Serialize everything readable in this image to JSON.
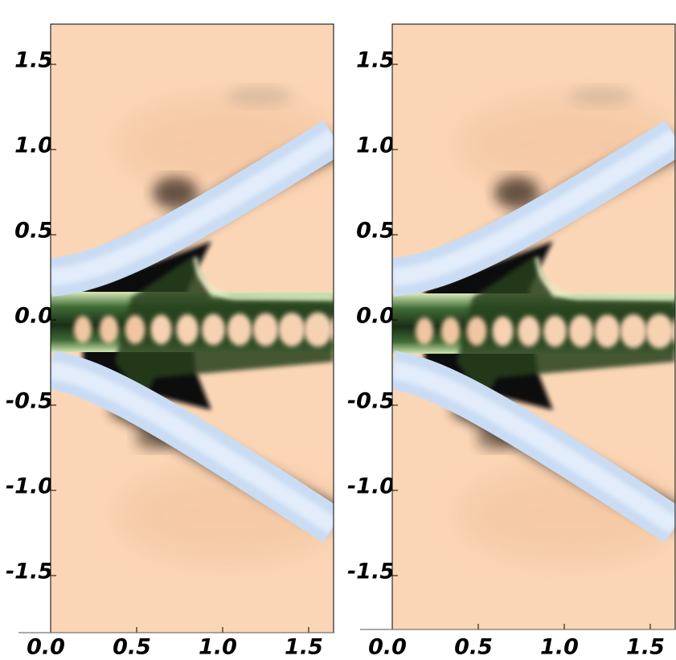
{
  "chart_data": [
    {
      "type": "image",
      "xlim": [
        0,
        1.645
      ],
      "ylim": [
        -1.835,
        1.736
      ],
      "xticks": [
        {
          "value": 0,
          "label": "0.0"
        },
        {
          "value": 0.5,
          "label": "0.5"
        },
        {
          "value": 1,
          "label": "1.0"
        },
        {
          "value": 1.5,
          "label": "1.5"
        }
      ],
      "yticks": [
        {
          "value": 1.5,
          "label": "1.5"
        },
        {
          "value": 1,
          "label": "1.0"
        },
        {
          "value": 0.5,
          "label": "0.5"
        },
        {
          "value": 0,
          "label": "0.0"
        },
        {
          "value": -0.5,
          "label": "-0.5"
        },
        {
          "value": -1,
          "label": "-1.0"
        },
        {
          "value": -1.5,
          "label": "-1.5"
        }
      ]
    },
    {
      "type": "image",
      "xlim": [
        0,
        1.645
      ],
      "ylim": [
        -1.816,
        1.736
      ],
      "xticks": [
        {
          "value": 0,
          "label": "0.0"
        },
        {
          "value": 0.5,
          "label": "0.5"
        },
        {
          "value": 1,
          "label": "1.0"
        },
        {
          "value": 1.5,
          "label": "1.5"
        }
      ],
      "yticks": [
        {
          "value": 1.5,
          "label": "1.5"
        },
        {
          "value": 1,
          "label": "1.0"
        },
        {
          "value": 0.5,
          "label": "0.5"
        },
        {
          "value": 0,
          "label": "0.0"
        },
        {
          "value": -0.5,
          "label": "-0.5"
        },
        {
          "value": -1,
          "label": "-1.0"
        },
        {
          "value": -1.5,
          "label": "-1.5"
        }
      ]
    }
  ]
}
